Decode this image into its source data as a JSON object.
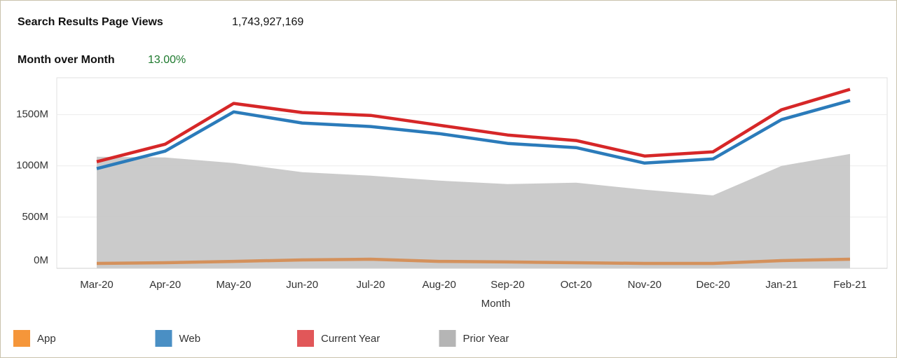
{
  "header": {
    "title": "Search Results Page Views",
    "total": "1,743,927,169",
    "mom_label": "Month over Month",
    "mom_value": "13.00%"
  },
  "chart_data": {
    "type": "line",
    "x_label": "Month",
    "categories": [
      "Mar-20",
      "Apr-20",
      "May-20",
      "Jun-20",
      "Jul-20",
      "Aug-20",
      "Sep-20",
      "Oct-20",
      "Nov-20",
      "Dec-20",
      "Jan-21",
      "Feb-21"
    ],
    "series": [
      {
        "name": "App",
        "color": "#f5963a",
        "line_color": "#d4915c",
        "style": "line",
        "values": [
          48,
          55,
          68,
          82,
          89,
          68,
          62,
          55,
          48,
          48,
          75,
          89
        ]
      },
      {
        "name": "Web",
        "color": "#4a8fc4",
        "line_color": "#2b7bba",
        "style": "line",
        "values": [
          973,
          1144,
          1527,
          1418,
          1384,
          1315,
          1219,
          1178,
          1027,
          1068,
          1452,
          1637
        ]
      },
      {
        "name": "Current Year",
        "color": "#e15759",
        "line_color": "#d62728",
        "style": "line",
        "values": [
          1041,
          1212,
          1610,
          1521,
          1493,
          1397,
          1301,
          1247,
          1096,
          1137,
          1548,
          1747
        ]
      },
      {
        "name": "Prior Year",
        "color": "#b5b5b5",
        "line_color": "#c8c8c8",
        "style": "area",
        "values": [
          1089,
          1082,
          1027,
          938,
          904,
          856,
          822,
          836,
          767,
          712,
          1000,
          1116
        ]
      }
    ],
    "ylim": [
      0,
      1860
    ],
    "yticks": [
      {
        "value": 0,
        "label": "0M"
      },
      {
        "value": 500,
        "label": "500M"
      },
      {
        "value": 1000,
        "label": "1000M"
      },
      {
        "value": 1500,
        "label": "1500M"
      }
    ],
    "grid": true,
    "legend": "bottom"
  }
}
